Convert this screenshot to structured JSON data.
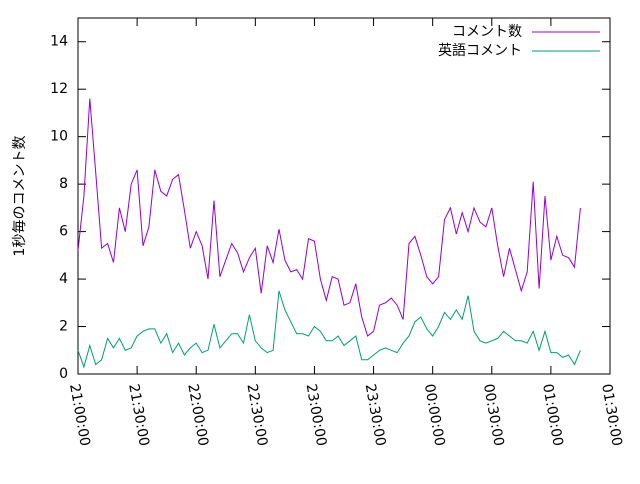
{
  "chart_data": {
    "type": "line",
    "y_label": "1秒毎のコメント数",
    "x": [
      "21:00:00",
      "21:03:00",
      "21:06:00",
      "21:09:00",
      "21:12:00",
      "21:15:00",
      "21:18:00",
      "21:21:00",
      "21:24:00",
      "21:27:00",
      "21:30:00",
      "21:33:00",
      "21:36:00",
      "21:39:00",
      "21:42:00",
      "21:45:00",
      "21:48:00",
      "21:51:00",
      "21:54:00",
      "21:57:00",
      "22:00:00",
      "22:03:00",
      "22:06:00",
      "22:09:00",
      "22:12:00",
      "22:15:00",
      "22:18:00",
      "22:21:00",
      "22:24:00",
      "22:27:00",
      "22:30:00",
      "22:33:00",
      "22:36:00",
      "22:39:00",
      "22:42:00",
      "22:45:00",
      "22:48:00",
      "22:51:00",
      "22:54:00",
      "22:57:00",
      "23:00:00",
      "23:03:00",
      "23:06:00",
      "23:09:00",
      "23:12:00",
      "23:15:00",
      "23:18:00",
      "23:21:00",
      "23:24:00",
      "23:27:00",
      "23:30:00",
      "23:33:00",
      "23:36:00",
      "23:39:00",
      "23:42:00",
      "23:45:00",
      "23:48:00",
      "23:51:00",
      "23:54:00",
      "23:57:00",
      "00:00:00",
      "00:03:00",
      "00:06:00",
      "00:09:00",
      "00:12:00",
      "00:15:00",
      "00:18:00",
      "00:21:00",
      "00:24:00",
      "00:27:00",
      "00:30:00",
      "00:33:00",
      "00:36:00",
      "00:39:00",
      "00:42:00",
      "00:45:00",
      "00:48:00",
      "00:51:00",
      "00:54:00",
      "00:57:00",
      "01:00:00",
      "01:03:00",
      "01:06:00",
      "01:09:00",
      "01:12:00",
      "01:15:00"
    ],
    "series": [
      {
        "name": "コメント数",
        "color": "#9400d3",
        "values": [
          5.2,
          7.5,
          11.6,
          8.5,
          5.3,
          5.5,
          4.7,
          7.0,
          6.0,
          8.0,
          8.6,
          5.4,
          6.2,
          8.6,
          7.7,
          7.5,
          8.2,
          8.4,
          6.9,
          5.3,
          6.0,
          5.4,
          4.0,
          7.3,
          4.1,
          4.8,
          5.5,
          5.1,
          4.3,
          4.9,
          5.3,
          3.4,
          5.4,
          4.7,
          6.1,
          4.8,
          4.3,
          4.4,
          4.0,
          5.7,
          5.6,
          4.0,
          3.1,
          4.1,
          4.0,
          2.9,
          3.0,
          3.8,
          2.4,
          1.6,
          1.8,
          2.9,
          3.0,
          3.2,
          2.9,
          2.3,
          5.5,
          5.8,
          5.0,
          4.1,
          3.8,
          4.1,
          6.5,
          7.0,
          5.9,
          6.8,
          6.0,
          7.0,
          6.4,
          6.2,
          7.0,
          5.4,
          4.1,
          5.3,
          4.4,
          3.5,
          4.3,
          8.1,
          3.6,
          7.5,
          4.8,
          5.8,
          5.0,
          4.9,
          4.5,
          7.0
        ]
      },
      {
        "name": "英語コメント",
        "color": "#009e73",
        "values": [
          1.0,
          0.3,
          1.2,
          0.4,
          0.6,
          1.5,
          1.1,
          1.5,
          1.0,
          1.1,
          1.6,
          1.8,
          1.9,
          1.9,
          1.3,
          1.7,
          0.9,
          1.3,
          0.8,
          1.1,
          1.3,
          0.9,
          1.0,
          2.1,
          1.1,
          1.4,
          1.7,
          1.7,
          1.3,
          2.5,
          1.4,
          1.1,
          0.9,
          1.0,
          3.5,
          2.7,
          2.2,
          1.7,
          1.7,
          1.6,
          2.0,
          1.8,
          1.4,
          1.4,
          1.6,
          1.2,
          1.4,
          1.6,
          0.6,
          0.6,
          0.8,
          1.0,
          1.1,
          1.0,
          0.9,
          1.3,
          1.6,
          2.2,
          2.4,
          1.9,
          1.6,
          2.0,
          2.6,
          2.3,
          2.7,
          2.3,
          3.3,
          1.8,
          1.4,
          1.3,
          1.4,
          1.5,
          1.8,
          1.6,
          1.4,
          1.4,
          1.3,
          1.8,
          1.0,
          1.8,
          0.9,
          0.9,
          0.7,
          0.8,
          0.4,
          1.0
        ]
      }
    ],
    "xlim": [
      "21:00:00",
      "01:30:00"
    ],
    "xticks": [
      "21:00:00",
      "21:30:00",
      "22:00:00",
      "22:30:00",
      "23:00:00",
      "23:30:00",
      "00:00:00",
      "00:30:00",
      "01:00:00",
      "01:30:00"
    ],
    "ylim": [
      0,
      15
    ],
    "yticks": [
      0,
      2,
      4,
      6,
      8,
      10,
      12,
      14
    ],
    "legend": "top-right"
  }
}
